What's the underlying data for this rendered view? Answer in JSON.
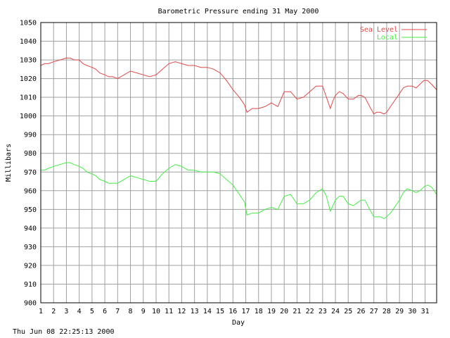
{
  "footer": {
    "timestamp": "Thu Jun 08 22:25:13 2000"
  },
  "chart_data": {
    "type": "line",
    "title": "Barometric Pressure ending 31 May 2000",
    "xlabel": "Day",
    "ylabel": "Millibars",
    "xlim": [
      1,
      31.9
    ],
    "ylim": [
      900,
      1050
    ],
    "x_ticks": [
      "1",
      "2",
      "3",
      "4",
      "5",
      "6",
      "7",
      "8",
      "9",
      "10",
      "11",
      "12",
      "13",
      "14",
      "15",
      "16",
      "17",
      "18",
      "19",
      "20",
      "21",
      "22",
      "23",
      "24",
      "25",
      "26",
      "27",
      "28",
      "29",
      "30",
      "31"
    ],
    "y_ticks": [
      900,
      910,
      920,
      930,
      940,
      950,
      960,
      970,
      980,
      990,
      1000,
      1010,
      1020,
      1030,
      1040,
      1050
    ],
    "grid": true,
    "legend_position": "top-right",
    "series": [
      {
        "name": "Sea Level",
        "color": "#e04848",
        "x": [
          1.0,
          1.3,
          1.6,
          2.0,
          2.5,
          3.0,
          3.3,
          3.6,
          4.0,
          4.3,
          4.6,
          5.0,
          5.3,
          5.6,
          6.0,
          6.3,
          6.6,
          7.0,
          7.5,
          8.0,
          8.5,
          9.0,
          9.5,
          10.0,
          10.5,
          11.0,
          11.5,
          12.0,
          12.5,
          13.0,
          13.5,
          14.0,
          14.5,
          15.0,
          15.5,
          16.0,
          16.5,
          16.9,
          17.1,
          17.5,
          18.0,
          18.5,
          19.0,
          19.5,
          20.0,
          20.5,
          21.0,
          21.5,
          22.0,
          22.5,
          23.0,
          23.3,
          23.6,
          23.8,
          24.0,
          24.3,
          24.6,
          25.0,
          25.4,
          25.8,
          26.0,
          26.3,
          26.6,
          27.0,
          27.2,
          27.5,
          27.8,
          28.0,
          28.3,
          28.6,
          29.0,
          29.3,
          29.6,
          30.0,
          30.3,
          30.6,
          30.9,
          31.2,
          31.5,
          31.9
        ],
        "values": [
          1027,
          1028,
          1028,
          1029,
          1030,
          1031,
          1031,
          1030,
          1030,
          1028,
          1027,
          1026,
          1025,
          1023,
          1022,
          1021,
          1021,
          1020,
          1022,
          1024,
          1023,
          1022,
          1021,
          1022,
          1025,
          1028,
          1029,
          1028,
          1027,
          1027,
          1026,
          1026,
          1025,
          1023,
          1019,
          1014,
          1010,
          1006,
          1002,
          1004,
          1004,
          1005,
          1007,
          1005,
          1013,
          1013,
          1009,
          1010,
          1013,
          1016,
          1016,
          1010,
          1004,
          1008,
          1011,
          1013,
          1012,
          1009,
          1009,
          1011,
          1011,
          1010,
          1006,
          1001,
          1002,
          1002,
          1001,
          1002,
          1005,
          1008,
          1012,
          1015,
          1016,
          1016,
          1015,
          1017,
          1019,
          1019,
          1017,
          1014
        ]
      },
      {
        "name": "Local",
        "color": "#44ee44",
        "x": [
          1.0,
          1.3,
          1.6,
          2.0,
          2.5,
          3.0,
          3.3,
          3.6,
          4.0,
          4.3,
          4.6,
          5.0,
          5.3,
          5.6,
          6.0,
          6.3,
          6.6,
          7.0,
          7.5,
          8.0,
          8.5,
          9.0,
          9.5,
          10.0,
          10.5,
          11.0,
          11.5,
          12.0,
          12.5,
          13.0,
          13.5,
          14.0,
          14.5,
          15.0,
          15.5,
          16.0,
          16.5,
          16.9,
          17.1,
          17.5,
          18.0,
          18.5,
          19.0,
          19.5,
          20.0,
          20.5,
          21.0,
          21.5,
          22.0,
          22.5,
          23.0,
          23.3,
          23.6,
          23.8,
          24.0,
          24.3,
          24.6,
          25.0,
          25.4,
          25.8,
          26.0,
          26.3,
          26.6,
          27.0,
          27.2,
          27.5,
          27.8,
          28.0,
          28.3,
          28.6,
          29.0,
          29.3,
          29.6,
          30.0,
          30.3,
          30.6,
          30.9,
          31.2,
          31.5,
          31.9
        ],
        "values": [
          971,
          971,
          972,
          973,
          974,
          975,
          975,
          974,
          973,
          972,
          970,
          969,
          968,
          966,
          965,
          964,
          964,
          964,
          966,
          968,
          967,
          966,
          965,
          965,
          969,
          972,
          974,
          973,
          971,
          971,
          970,
          970,
          970,
          969,
          966,
          963,
          958,
          954,
          947,
          948,
          948,
          950,
          951,
          950,
          957,
          958,
          953,
          953,
          955,
          959,
          961,
          957,
          949,
          952,
          955,
          957,
          957,
          953,
          952,
          954,
          955,
          955,
          951,
          946,
          946,
          946,
          945,
          946,
          948,
          951,
          955,
          959,
          961,
          960,
          959,
          960,
          962,
          963,
          962,
          958
        ]
      }
    ]
  }
}
